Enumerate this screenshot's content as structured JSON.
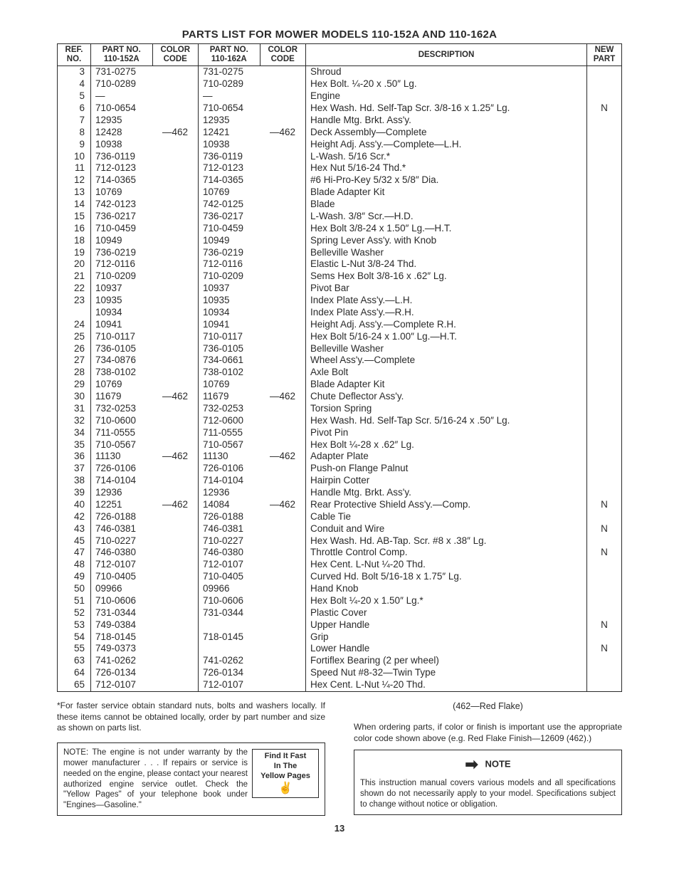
{
  "title": "PARTS LIST FOR MOWER MODELS 110-152A AND 110-162A",
  "columns": {
    "ref": "REF.\nNO.",
    "pn1": "PART NO.\n110-152A",
    "cc1": "COLOR\nCODE",
    "pn2": "PART NO.\n110-162A",
    "cc2": "COLOR\nCODE",
    "desc": "DESCRIPTION",
    "new": "NEW\nPART"
  },
  "rows": [
    {
      "ref": "3",
      "pn1": "731-0275",
      "cc1": "",
      "pn2": "731-0275",
      "cc2": "",
      "desc": "Shroud",
      "new": ""
    },
    {
      "ref": "4",
      "pn1": "710-0289",
      "cc1": "",
      "pn2": "710-0289",
      "cc2": "",
      "desc": "Hex Bolt. ¼-20 x .50″ Lg.",
      "new": ""
    },
    {
      "ref": "5",
      "pn1": "—",
      "cc1": "",
      "pn2": "—",
      "cc2": "",
      "desc": "Engine",
      "new": ""
    },
    {
      "ref": "6",
      "pn1": "710-0654",
      "cc1": "",
      "pn2": "710-0654",
      "cc2": "",
      "desc": "Hex Wash. Hd. Self-Tap Scr. 3/8-16 x 1.25″ Lg.",
      "new": "N"
    },
    {
      "ref": "7",
      "pn1": "12935",
      "cc1": "",
      "pn2": "12935",
      "cc2": "",
      "desc": "Handle Mtg. Brkt. Ass'y.",
      "new": ""
    },
    {
      "ref": "8",
      "pn1": "12428",
      "cc1": "—462",
      "pn2": "12421",
      "cc2": "—462",
      "desc": "Deck Assembly—Complete",
      "new": ""
    },
    {
      "ref": "9",
      "pn1": "10938",
      "cc1": "",
      "pn2": "10938",
      "cc2": "",
      "desc": "Height Adj. Ass'y.—Complete—L.H.",
      "new": ""
    },
    {
      "ref": "10",
      "pn1": "736-0119",
      "cc1": "",
      "pn2": "736-0119",
      "cc2": "",
      "desc": "L-Wash. 5/16 Scr.*",
      "new": ""
    },
    {
      "ref": "11",
      "pn1": "712-0123",
      "cc1": "",
      "pn2": "712-0123",
      "cc2": "",
      "desc": "Hex Nut 5/16-24 Thd.*",
      "new": ""
    },
    {
      "ref": "12",
      "pn1": "714-0365",
      "cc1": "",
      "pn2": "714-0365",
      "cc2": "",
      "desc": "#6 Hi-Pro-Key 5/32 x 5/8″ Dia.",
      "new": ""
    },
    {
      "ref": "13",
      "pn1": "10769",
      "cc1": "",
      "pn2": "10769",
      "cc2": "",
      "desc": "Blade Adapter Kit",
      "new": ""
    },
    {
      "ref": "14",
      "pn1": "742-0123",
      "cc1": "",
      "pn2": "742-0125",
      "cc2": "",
      "desc": "Blade",
      "new": ""
    },
    {
      "ref": "15",
      "pn1": "736-0217",
      "cc1": "",
      "pn2": "736-0217",
      "cc2": "",
      "desc": "L-Wash. 3/8″ Scr.—H.D.",
      "new": ""
    },
    {
      "ref": "16",
      "pn1": "710-0459",
      "cc1": "",
      "pn2": "710-0459",
      "cc2": "",
      "desc": "Hex Bolt 3/8-24 x 1.50″ Lg.—H.T.",
      "new": ""
    },
    {
      "ref": "18",
      "pn1": "10949",
      "cc1": "",
      "pn2": "10949",
      "cc2": "",
      "desc": "Spring Lever Ass'y. with Knob",
      "new": ""
    },
    {
      "ref": "19",
      "pn1": "736-0219",
      "cc1": "",
      "pn2": "736-0219",
      "cc2": "",
      "desc": "Belleville Washer",
      "new": ""
    },
    {
      "ref": "20",
      "pn1": "712-0116",
      "cc1": "",
      "pn2": "712-0116",
      "cc2": "",
      "desc": "Elastic L-Nut 3/8-24 Thd.",
      "new": ""
    },
    {
      "ref": "21",
      "pn1": "710-0209",
      "cc1": "",
      "pn2": "710-0209",
      "cc2": "",
      "desc": "Sems Hex Bolt 3/8-16 x .62″ Lg.",
      "new": ""
    },
    {
      "ref": "22",
      "pn1": "10937",
      "cc1": "",
      "pn2": "10937",
      "cc2": "",
      "desc": "Pivot Bar",
      "new": ""
    },
    {
      "ref": "23",
      "pn1": "10935",
      "cc1": "",
      "pn2": "10935",
      "cc2": "",
      "desc": "Index Plate Ass'y.—L.H.",
      "new": ""
    },
    {
      "ref": "",
      "pn1": "10934",
      "cc1": "",
      "pn2": "10934",
      "cc2": "",
      "desc": "Index Plate Ass'y.—R.H.",
      "new": ""
    },
    {
      "ref": "24",
      "pn1": "10941",
      "cc1": "",
      "pn2": "10941",
      "cc2": "",
      "desc": "Height Adj. Ass'y.—Complete R.H.",
      "new": ""
    },
    {
      "ref": "25",
      "pn1": "710-0117",
      "cc1": "",
      "pn2": "710-0117",
      "cc2": "",
      "desc": "Hex Bolt 5/16-24 x 1.00″ Lg.—H.T.",
      "new": ""
    },
    {
      "ref": "26",
      "pn1": "736-0105",
      "cc1": "",
      "pn2": "736-0105",
      "cc2": "",
      "desc": "Belleville Washer",
      "new": ""
    },
    {
      "ref": "27",
      "pn1": "734-0876",
      "cc1": "",
      "pn2": "734-0661",
      "cc2": "",
      "desc": "Wheel Ass'y.—Complete",
      "new": ""
    },
    {
      "ref": "28",
      "pn1": "738-0102",
      "cc1": "",
      "pn2": "738-0102",
      "cc2": "",
      "desc": "Axle Bolt",
      "new": ""
    },
    {
      "ref": "29",
      "pn1": "10769",
      "cc1": "",
      "pn2": "10769",
      "cc2": "",
      "desc": "Blade Adapter Kit",
      "new": ""
    },
    {
      "ref": "30",
      "pn1": "11679",
      "cc1": "—462",
      "pn2": "11679",
      "cc2": "—462",
      "desc": "Chute Deflector Ass'y.",
      "new": ""
    },
    {
      "ref": "31",
      "pn1": "732-0253",
      "cc1": "",
      "pn2": "732-0253",
      "cc2": "",
      "desc": "Torsion Spring",
      "new": ""
    },
    {
      "ref": "32",
      "pn1": "710-0600",
      "cc1": "",
      "pn2": "712-0600",
      "cc2": "",
      "desc": "Hex Wash. Hd. Self-Tap Scr. 5/16-24 x .50″ Lg.",
      "new": ""
    },
    {
      "ref": "34",
      "pn1": "711-0555",
      "cc1": "",
      "pn2": "711-0555",
      "cc2": "",
      "desc": "Pivot Pin",
      "new": ""
    },
    {
      "ref": "35",
      "pn1": "710-0567",
      "cc1": "",
      "pn2": "710-0567",
      "cc2": "",
      "desc": "Hex Bolt ¼-28 x .62″ Lg.",
      "new": ""
    },
    {
      "ref": "36",
      "pn1": "11130",
      "cc1": "—462",
      "pn2": "11130",
      "cc2": "—462",
      "desc": "Adapter Plate",
      "new": ""
    },
    {
      "ref": "37",
      "pn1": "726-0106",
      "cc1": "",
      "pn2": "726-0106",
      "cc2": "",
      "desc": "Push-on Flange Palnut",
      "new": ""
    },
    {
      "ref": "38",
      "pn1": "714-0104",
      "cc1": "",
      "pn2": "714-0104",
      "cc2": "",
      "desc": "Hairpin Cotter",
      "new": ""
    },
    {
      "ref": "39",
      "pn1": "12936",
      "cc1": "",
      "pn2": "12936",
      "cc2": "",
      "desc": "Handle Mtg. Brkt. Ass'y.",
      "new": ""
    },
    {
      "ref": "40",
      "pn1": "12251",
      "cc1": "—462",
      "pn2": "14084",
      "cc2": "—462",
      "desc": "Rear Protective Shield Ass'y.—Comp.",
      "new": "N"
    },
    {
      "ref": "42",
      "pn1": "726-0188",
      "cc1": "",
      "pn2": "726-0188",
      "cc2": "",
      "desc": "Cable Tie",
      "new": ""
    },
    {
      "ref": "43",
      "pn1": "746-0381",
      "cc1": "",
      "pn2": "746-0381",
      "cc2": "",
      "desc": "Conduit and Wire",
      "new": "N"
    },
    {
      "ref": "45",
      "pn1": "710-0227",
      "cc1": "",
      "pn2": "710-0227",
      "cc2": "",
      "desc": "Hex Wash. Hd. AB-Tap. Scr. #8 x .38″ Lg.",
      "new": ""
    },
    {
      "ref": "47",
      "pn1": "746-0380",
      "cc1": "",
      "pn2": "746-0380",
      "cc2": "",
      "desc": "Throttle Control Comp.",
      "new": "N"
    },
    {
      "ref": "48",
      "pn1": "712-0107",
      "cc1": "",
      "pn2": "712-0107",
      "cc2": "",
      "desc": "Hex Cent. L-Nut ¼-20 Thd.",
      "new": ""
    },
    {
      "ref": "49",
      "pn1": "710-0405",
      "cc1": "",
      "pn2": "710-0405",
      "cc2": "",
      "desc": "Curved Hd. Bolt 5/16-18 x 1.75″ Lg.",
      "new": ""
    },
    {
      "ref": "50",
      "pn1": "09966",
      "cc1": "",
      "pn2": "09966",
      "cc2": "",
      "desc": "Hand Knob",
      "new": ""
    },
    {
      "ref": "51",
      "pn1": "710-0606",
      "cc1": "",
      "pn2": "710-0606",
      "cc2": "",
      "desc": "Hex Bolt ¼-20 x 1.50″ Lg.*",
      "new": ""
    },
    {
      "ref": "52",
      "pn1": "731-0344",
      "cc1": "",
      "pn2": "731-0344",
      "cc2": "",
      "desc": "Plastic Cover",
      "new": ""
    },
    {
      "ref": "53",
      "pn1": "749-0384",
      "cc1": "",
      "pn2": "",
      "cc2": "",
      "desc": "Upper Handle",
      "new": "N"
    },
    {
      "ref": "54",
      "pn1": "718-0145",
      "cc1": "",
      "pn2": "718-0145",
      "cc2": "",
      "desc": "Grip",
      "new": ""
    },
    {
      "ref": "55",
      "pn1": "749-0373",
      "cc1": "",
      "pn2": "",
      "cc2": "",
      "desc": "Lower Handle",
      "new": "N"
    },
    {
      "ref": "63",
      "pn1": "741-0262",
      "cc1": "",
      "pn2": "741-0262",
      "cc2": "",
      "desc": "Fortiflex Bearing (2 per wheel)",
      "new": ""
    },
    {
      "ref": "64",
      "pn1": "726-0134",
      "cc1": "",
      "pn2": "726-0134",
      "cc2": "",
      "desc": "Speed Nut #8-32—Twin Type",
      "new": ""
    },
    {
      "ref": "65",
      "pn1": "712-0107",
      "cc1": "",
      "pn2": "712-0107",
      "cc2": "",
      "desc": "Hex Cent. L-Nut ¼-20 Thd.",
      "new": ""
    }
  ],
  "footer": {
    "asterisk": "*For faster service obtain standard nuts, bolts and washers locally. If these items cannot be obtained locally, order by part number and size as shown on parts list.",
    "engine_note": "NOTE: The engine is not under warranty by the mower manufacturer . . . If repairs or service is needed on the engine, please contact your nearest authorized engine service outlet. Check the \"Yellow Pages\" of your telephone book under \"Engines—Gasoline.\"",
    "yellow_box_l1": "Find It Fast",
    "yellow_box_l2": "In The",
    "yellow_box_l3": "Yellow Pages",
    "flake": "(462—Red Flake)",
    "ordering": "When ordering parts, if color or finish is important use the appropriate color code shown above (e.g. Red Flake Finish—12609 (462).)",
    "note_title": "NOTE",
    "note_body": "This instruction manual covers various models and all specifications shown do not necessarily apply to your model. Specifications subject to change without notice or obligation.",
    "page": "13"
  }
}
